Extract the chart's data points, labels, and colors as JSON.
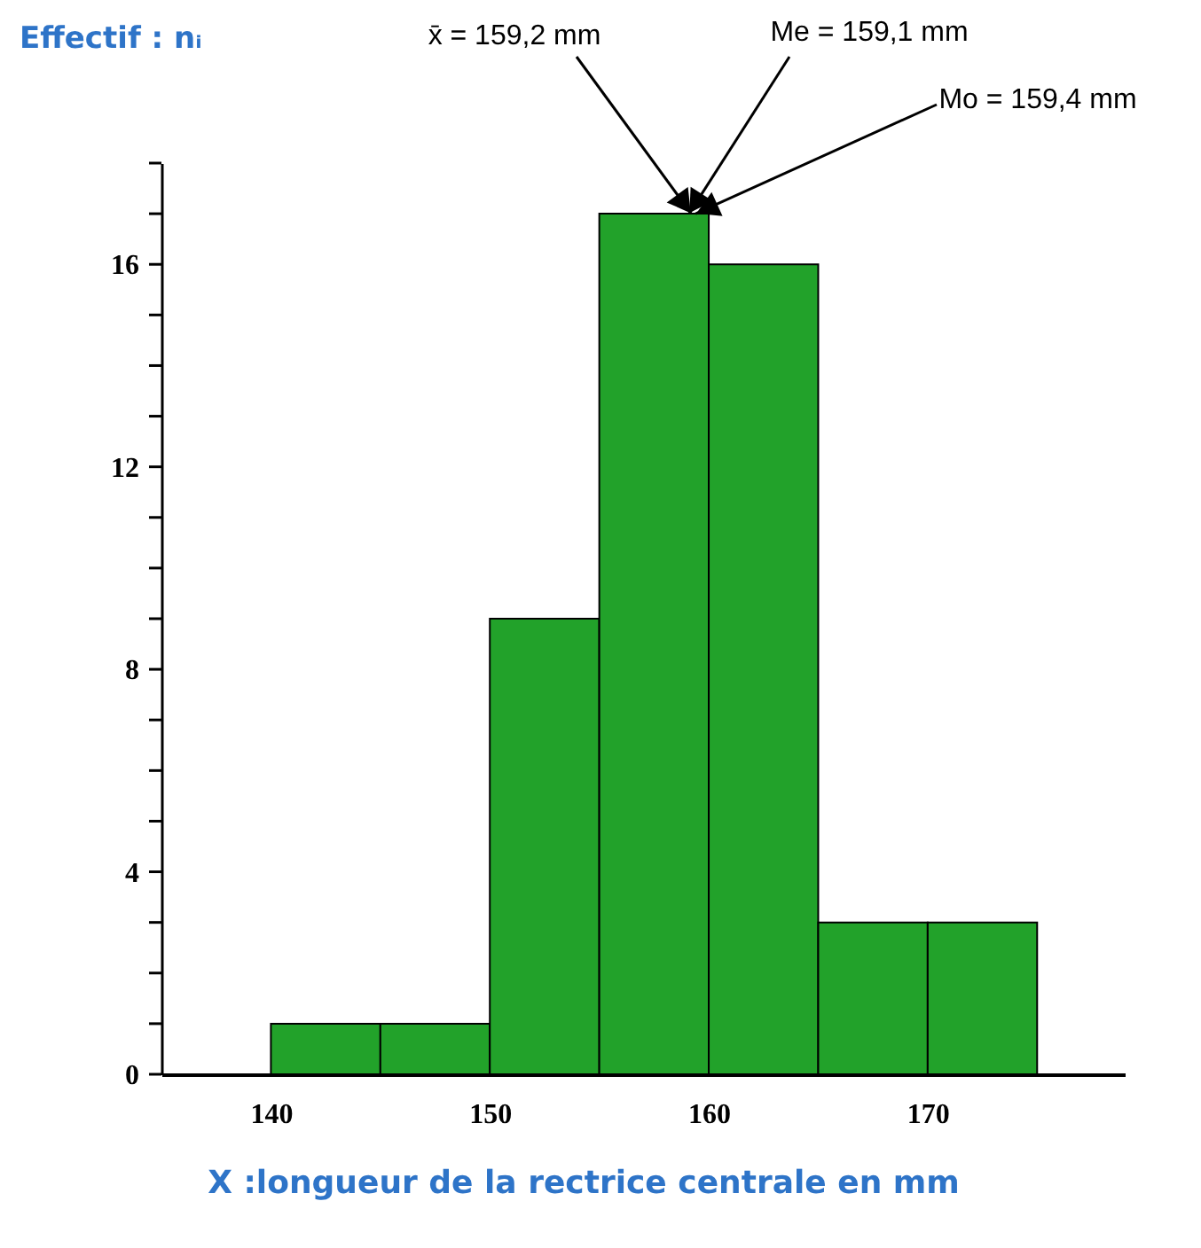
{
  "chart_data": {
    "type": "histogram",
    "ylabel": "Effectif : nᵢ",
    "xlabel": "X :longueur de la rectrice centrale en mm",
    "bins": [
      140,
      145,
      150,
      155,
      160,
      165,
      170,
      175
    ],
    "values": [
      1,
      1,
      9,
      17,
      16,
      3,
      3
    ],
    "color": "#22a22a",
    "xlim": [
      135,
      179
    ],
    "xticks": [
      140,
      150,
      160,
      170
    ],
    "ylim": [
      0,
      18
    ],
    "yticks": [
      0,
      {
        "value": 1,
        "label": null
      },
      {
        "value": 2,
        "label": null
      },
      {
        "value": 3,
        "label": null
      },
      4,
      {
        "value": 5,
        "label": null
      },
      {
        "value": 6,
        "label": null
      },
      {
        "value": 7,
        "label": null
      },
      8,
      {
        "value": 9,
        "label": null
      },
      {
        "value": 10,
        "label": null
      },
      {
        "value": 11,
        "label": null
      },
      12,
      {
        "value": 13,
        "label": null
      },
      {
        "value": 14,
        "label": null
      },
      {
        "value": 15,
        "label": null
      },
      16,
      {
        "value": 17,
        "label": null
      },
      {
        "value": 18,
        "label": null
      }
    ],
    "grid": false,
    "annotations": [
      {
        "text": "x̄ = 159,2 mm",
        "x": 159.2,
        "y": 17
      },
      {
        "text": "Me = 159,1 mm",
        "x": 159.1,
        "y": 17
      },
      {
        "text": "Mo = 159,4 mm",
        "x": 159.4,
        "y": 17
      }
    ]
  }
}
